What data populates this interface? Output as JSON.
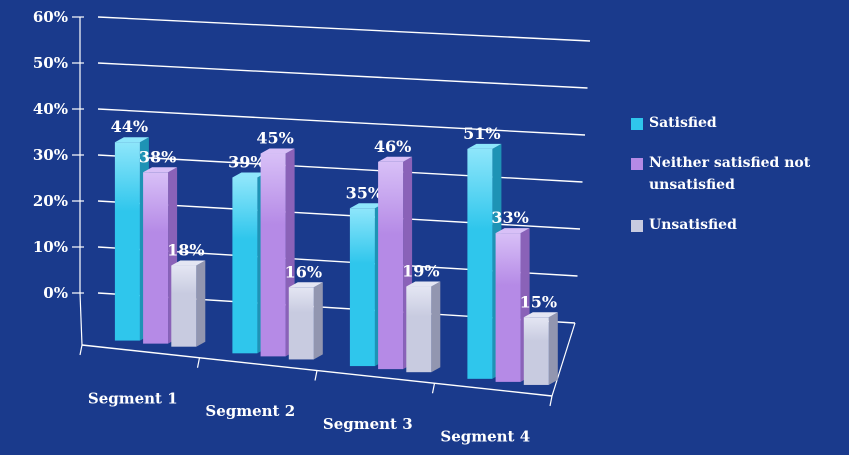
{
  "chart_data": {
    "type": "bar",
    "categories": [
      "Segment 1",
      "Segment 2",
      "Segment 3",
      "Segment 4"
    ],
    "series": [
      {
        "name": "Satisfied",
        "values": [
          44,
          39,
          35,
          51
        ],
        "labels": [
          "44%",
          "39%",
          "35%",
          "51%"
        ]
      },
      {
        "name": "Neither satisfied not unsatisfied",
        "values": [
          38,
          45,
          46,
          33
        ],
        "labels": [
          "38%",
          "45%",
          "46%",
          "33%"
        ]
      },
      {
        "name": "Unsatisfied",
        "values": [
          18,
          16,
          19,
          15
        ],
        "labels": [
          "18%",
          "16%",
          "19%",
          "15%"
        ]
      }
    ],
    "ylim": [
      0,
      60
    ],
    "yticks": [
      "0%",
      "10%",
      "20%",
      "30%",
      "40%",
      "50%",
      "60%"
    ],
    "grid": true,
    "legend_position": "right",
    "colors": {
      "background": "#1a3a8c",
      "series": [
        "#2fc6ec",
        "#b58ae6",
        "#c8cbe0"
      ],
      "series_dark": [
        "#1e93b5",
        "#8a62b8",
        "#9296b0"
      ],
      "series_top": [
        "#8ee6fb",
        "#d8c0f7",
        "#e4e6f3"
      ]
    }
  }
}
